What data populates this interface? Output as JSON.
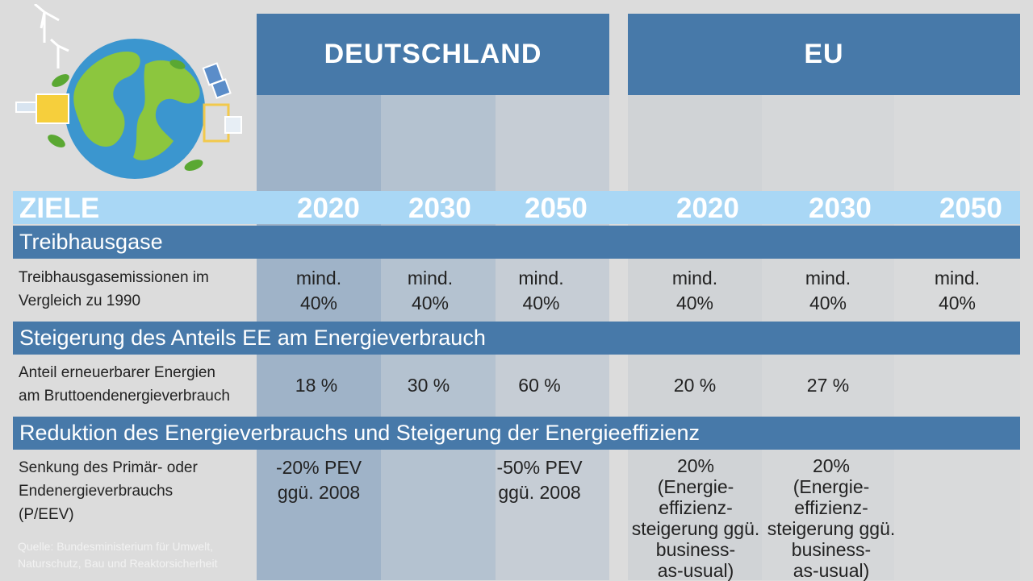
{
  "header": {
    "de": "DEUTSCHLAND",
    "eu": "EU"
  },
  "ziele": {
    "label": "ZIELE",
    "years": [
      "2020",
      "2030",
      "2050",
      "2020",
      "2030",
      "2050"
    ]
  },
  "sections": {
    "ghg": "Treibhausgase",
    "ee": "Steigerung des Anteils EE am Energieverbrauch",
    "eff": "Reduktion des Energieverbrauchs und Steigerung der Energieeffizienz"
  },
  "rows": {
    "ghg": {
      "label": [
        "Treibhausgasemissionen im",
        "Vergleich zu 1990"
      ],
      "cells": [
        [
          "mind.",
          "40%"
        ],
        [
          "mind.",
          "40%"
        ],
        [
          "mind.",
          "40%"
        ],
        [
          "mind.",
          "40%"
        ],
        [
          "mind.",
          "40%"
        ],
        [
          "mind.",
          "40%"
        ]
      ]
    },
    "ee": {
      "label": [
        "Anteil erneuerbarer Energien",
        "am Bruttoendenergieverbrauch"
      ],
      "cells": [
        "18 %",
        "30 %",
        "60 %",
        "20 %",
        "27 %",
        ""
      ]
    },
    "eff": {
      "label": [
        "Senkung des Primär- oder",
        "Endenergieverbrauchs",
        "(P/EEV)"
      ],
      "de2020": [
        "-20% PEV",
        "ggü. 2008"
      ],
      "de2050": [
        "-50% PEV",
        "ggü. 2008"
      ],
      "eu2020": [
        "20%",
        "(Energie-",
        "effizienz-",
        "steigerung ggü.",
        "business-",
        "as-usual)"
      ],
      "eu2030": [
        "20%",
        "(Energie-",
        "effizienz-",
        "steigerung ggü.",
        "business-",
        "as-usual)"
      ]
    }
  },
  "source": [
    "Quelle: Bundesministerium für Umwelt,",
    "Naturschutz, Bau und Reaktorsicherheit"
  ],
  "colors": {
    "header": "#4779a9",
    "ziele_bar": "#a9d7f5",
    "ocean": "#3b96cf",
    "land": "#8cc63e"
  }
}
